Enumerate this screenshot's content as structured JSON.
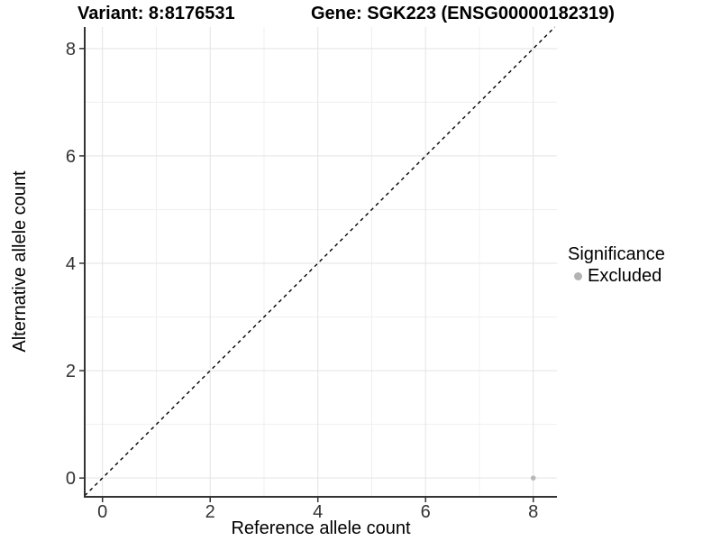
{
  "chart_data": {
    "type": "scatter",
    "titles": {
      "left": "Variant: 8:8176531",
      "right": "Gene: SGK223 (ENSG00000182319)"
    },
    "xlabel": "Reference allele count",
    "ylabel": "Alternative allele count",
    "xlim": [
      -0.33,
      8.44
    ],
    "ylim": [
      -0.35,
      8.4
    ],
    "x_ticks": [
      0,
      2,
      4,
      6,
      8
    ],
    "y_ticks": [
      0,
      2,
      4,
      6,
      8
    ],
    "x_grid_minor": [
      1,
      3,
      5,
      7
    ],
    "y_grid_minor": [
      1,
      3,
      5,
      7
    ],
    "grid": true,
    "reference_line": {
      "type": "identity",
      "equation": "y = x",
      "style": "dashed",
      "color": "#000000"
    },
    "series": [
      {
        "name": "Excluded",
        "color": "#b8b8b8",
        "points": [
          {
            "x": 8,
            "y": 0
          }
        ]
      }
    ],
    "legend": {
      "title": "Significance",
      "position": "right",
      "entries": [
        {
          "label": "Excluded",
          "color": "#b3b3b3"
        }
      ]
    },
    "colors": {
      "grid_major": "#e3e3e3",
      "grid_minor": "#f0f0f0",
      "axis_line": "#333333",
      "tick_mark": "#333333",
      "tick_label": "#333333"
    }
  }
}
